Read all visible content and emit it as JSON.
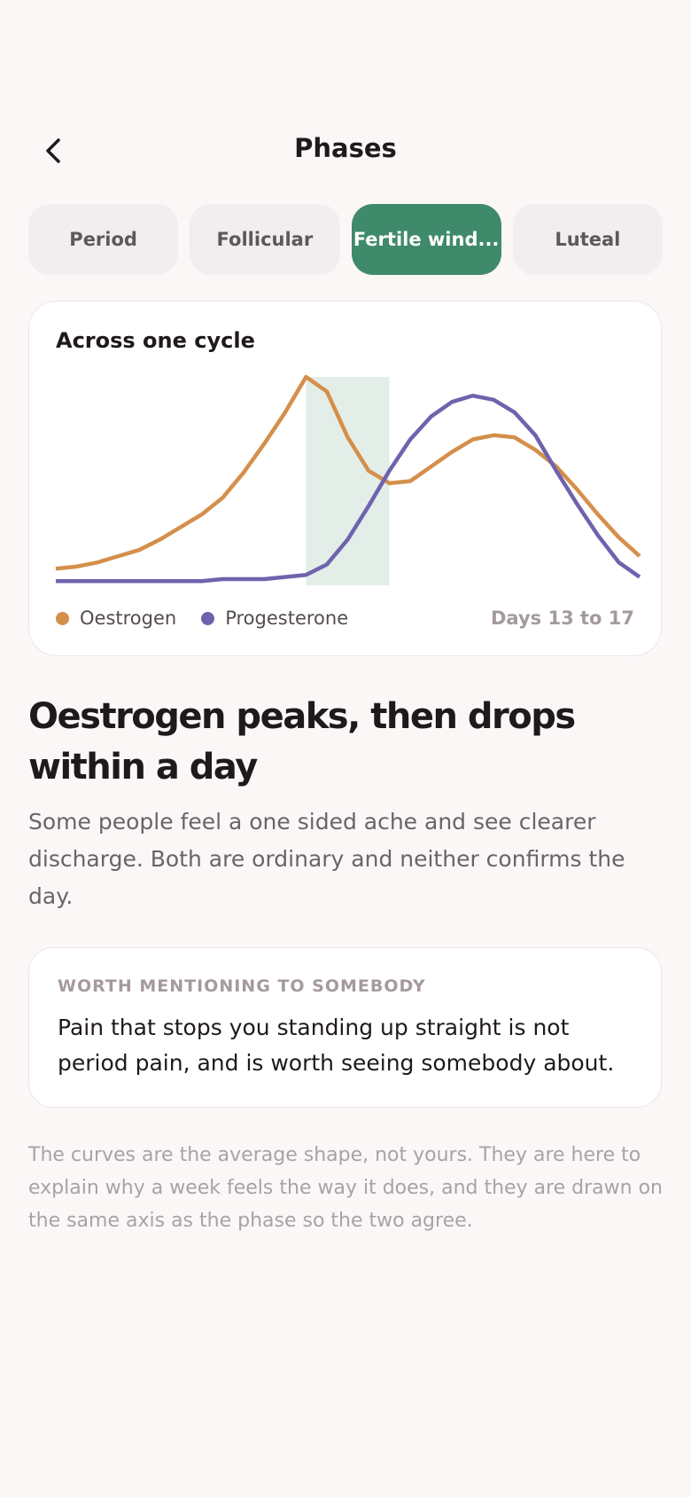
{
  "header": {
    "title": "Phases"
  },
  "tabs": {
    "items": [
      "Period",
      "Follicular",
      "Fertile wind...",
      "Luteal"
    ],
    "selected": 2
  },
  "chart_data": {
    "type": "line",
    "title": "Across one cycle",
    "x": [
      1,
      2,
      3,
      4,
      5,
      6,
      7,
      8,
      9,
      10,
      11,
      12,
      13,
      14,
      15,
      16,
      17,
      18,
      19,
      20,
      21,
      22,
      23,
      24,
      25,
      26,
      27,
      28,
      29
    ],
    "xlim": [
      1,
      29
    ],
    "ylim": [
      0,
      100
    ],
    "band": [
      13,
      17
    ],
    "band_label": "Days 13 to 17",
    "band_color": "#e3eee9",
    "series": [
      {
        "name": "Oestrogen",
        "color": "#d48f4b",
        "values": [
          8,
          9,
          11,
          14,
          17,
          22,
          28,
          34,
          42,
          54,
          68,
          83,
          100,
          93,
          71,
          55,
          49,
          50,
          57,
          64,
          70,
          72,
          71,
          65,
          57,
          46,
          34,
          23,
          14
        ]
      },
      {
        "name": "Progesterone",
        "color": "#6f63ad",
        "values": [
          2,
          2,
          2,
          2,
          2,
          2,
          2,
          2,
          3,
          3,
          3,
          4,
          5,
          10,
          22,
          38,
          55,
          70,
          81,
          88,
          91,
          89,
          83,
          72,
          55,
          39,
          24,
          11,
          4
        ]
      }
    ]
  },
  "content": {
    "heading": "Oestrogen peaks, then drops within a day",
    "body": "Some people feel a one sided ache and see clearer discharge. Both are ordinary and neither confirms the day."
  },
  "note": {
    "label": "WORTH MENTIONING TO SOMEBODY",
    "text": "Pain that stops you standing up straight is not period pain, and is worth seeing somebody about."
  },
  "footer": {
    "text": "The curves are the average shape, not yours. They are here to explain why a week feels the way it does, and they are drawn on the same axis as the phase so the two agree."
  }
}
